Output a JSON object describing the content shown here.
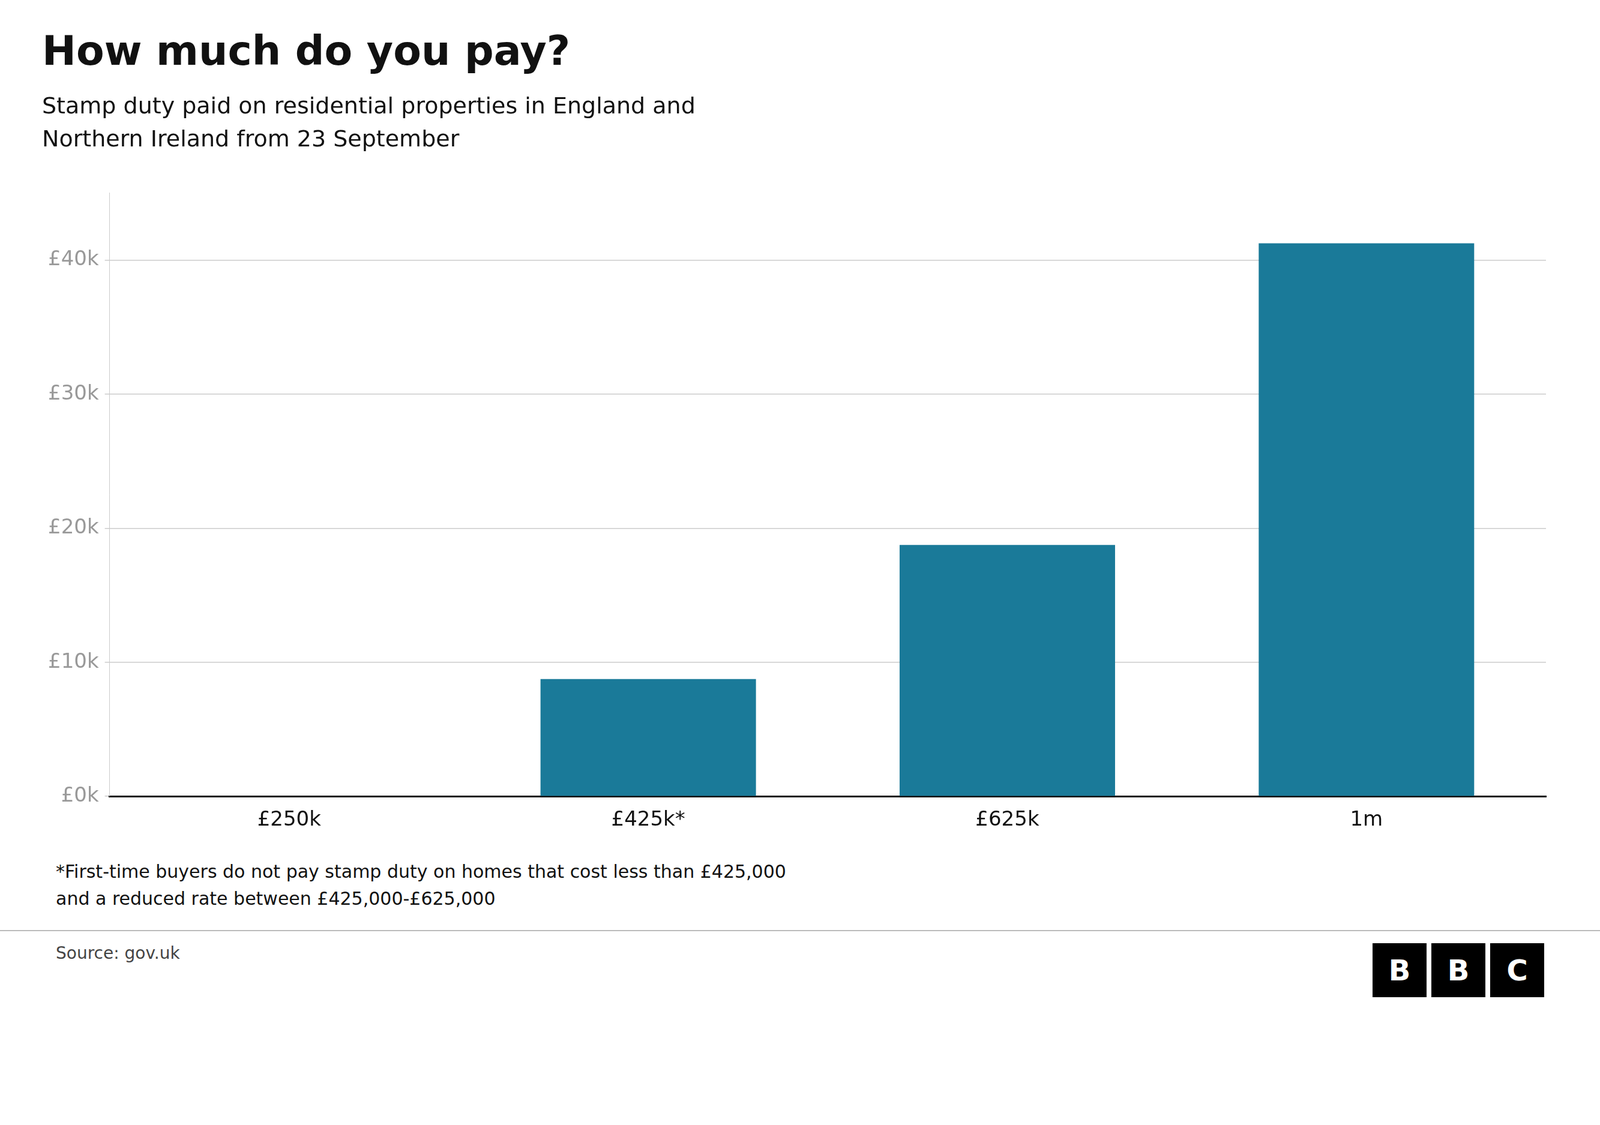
{
  "chart_data": {
    "type": "bar",
    "title": "How much do you pay?",
    "subtitle": "Stamp duty paid on residential properties in England and\nNorthern Ireland from 23 September",
    "categories": [
      "£250k",
      "£425k*",
      "£625k",
      "1m"
    ],
    "values": [
      0,
      8750,
      18750,
      41250
    ],
    "color": "#1a7a99",
    "ylim": [
      0,
      45000
    ],
    "yticks": [
      {
        "value": 0,
        "label": "£0k"
      },
      {
        "value": 10000,
        "label": "£10k"
      },
      {
        "value": 20000,
        "label": "£20k"
      },
      {
        "value": 30000,
        "label": "£30k"
      },
      {
        "value": 40000,
        "label": "£40k"
      }
    ],
    "grid": true,
    "annotations": [
      "*First-time buyers do not pay stamp duty on homes that cost less than £425,000",
      "and a reduced rate between £425,000-£625,000"
    ],
    "source": "Source: gov.uk",
    "logo": "BBC"
  }
}
